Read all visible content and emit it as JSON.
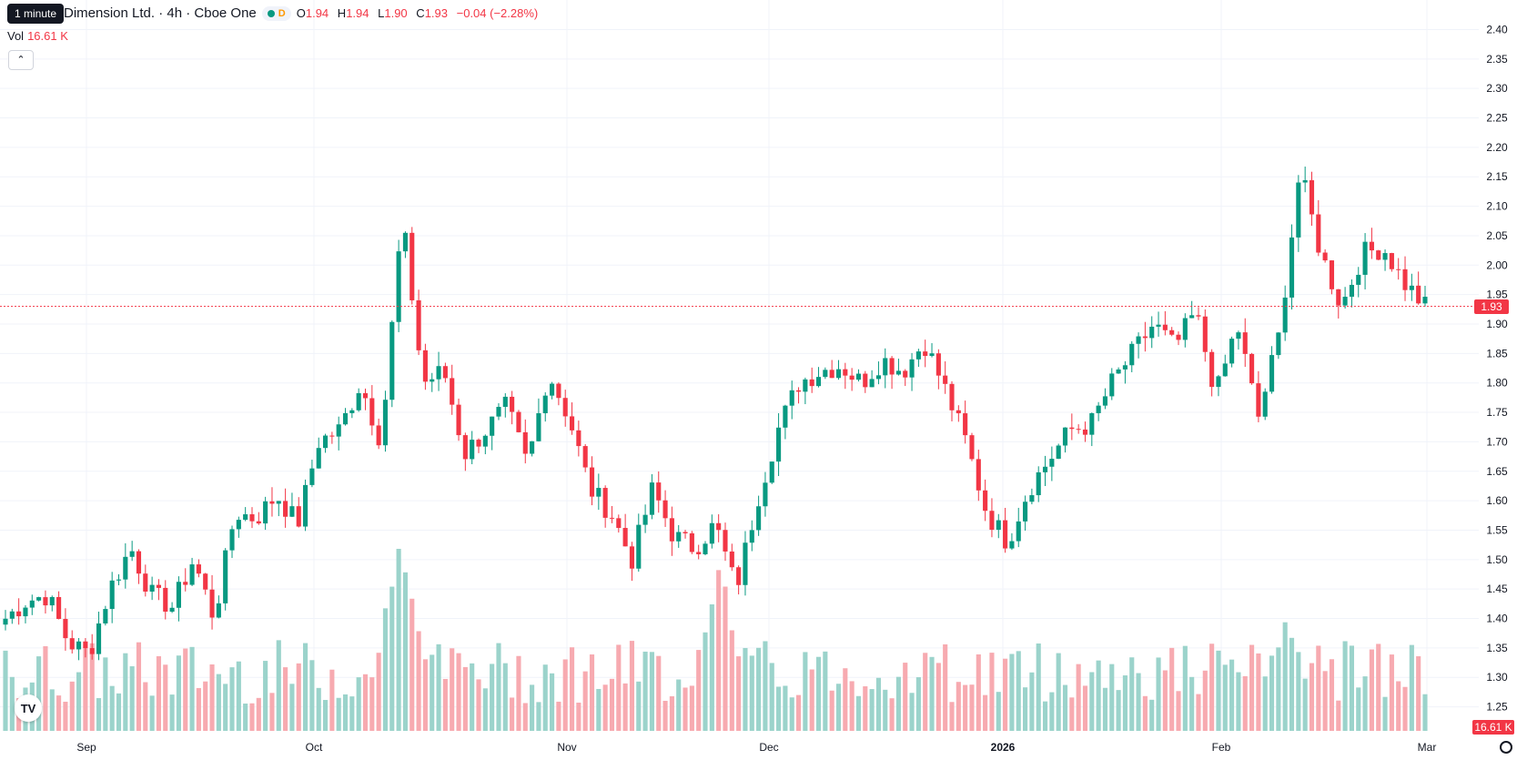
{
  "header": {
    "title": "Dimension Ltd. · 4h · Cboe One",
    "badge": "D",
    "ohlc": [
      {
        "k": "O",
        "v": "1.94"
      },
      {
        "k": "H",
        "v": "1.94"
      },
      {
        "k": "L",
        "v": "1.90"
      },
      {
        "k": "C",
        "v": "1.93"
      }
    ],
    "change": "−0.04 (−2.28%)",
    "vol_label": "Vol",
    "vol_value": "16.61 K",
    "tooltip": "1 minute",
    "collapse_icon": "chevron-up-icon"
  },
  "price_axis": {
    "ticks": [
      "2.40",
      "2.35",
      "2.30",
      "2.25",
      "2.20",
      "2.15",
      "2.10",
      "2.05",
      "2.00",
      "1.95",
      "1.90",
      "1.85",
      "1.80",
      "1.75",
      "1.70",
      "1.65",
      "1.60",
      "1.55",
      "1.50",
      "1.45",
      "1.40",
      "1.35",
      "1.30",
      "1.25"
    ],
    "last_price": "1.93",
    "last_volume": "16.61 K"
  },
  "time_axis": {
    "ticks": [
      "Sep",
      "Oct",
      "Nov",
      "Dec",
      "2026",
      "Feb",
      "Mar"
    ]
  },
  "colors": {
    "up": "#089981",
    "down": "#f23645",
    "up_vol": "#9bd3cb",
    "down_vol": "#f7aab0",
    "grid": "#f0f3fa",
    "last_line": "#f23645"
  },
  "chart_data": {
    "type": "candlestick",
    "symbol": "Dimension Ltd.",
    "interval": "4h",
    "exchange": "Cboe One",
    "y_range": [
      1.22,
      2.41
    ],
    "x_ticks": [
      "Sep",
      "Oct",
      "Nov",
      "Dec",
      "2026",
      "Feb",
      "Mar"
    ],
    "price_keyframes": [
      1.4,
      1.43,
      1.44,
      1.36,
      1.34,
      1.45,
      1.52,
      1.44,
      1.42,
      1.5,
      1.4,
      1.58,
      1.57,
      1.61,
      1.56,
      1.7,
      1.72,
      1.8,
      1.7,
      2.08,
      1.8,
      1.82,
      1.68,
      1.72,
      1.76,
      1.66,
      1.82,
      1.74,
      1.62,
      1.58,
      1.5,
      1.62,
      1.54,
      1.52,
      1.56,
      1.45,
      1.6,
      1.72,
      1.8,
      1.82,
      1.83,
      1.8,
      1.84,
      1.82,
      1.87,
      1.79,
      1.7,
      1.58,
      1.53,
      1.62,
      1.67,
      1.72,
      1.73,
      1.8,
      1.85,
      1.9,
      1.86,
      1.92,
      1.78,
      1.9,
      1.74,
      1.88,
      2.16,
      2.02,
      1.93,
      2.02,
      2.03,
      1.97,
      1.93
    ],
    "volume_peaks": [
      {
        "x_label": "Oct",
        "value": 1.0
      },
      {
        "x_label": "Nov",
        "value": 0.85
      },
      {
        "x_label": "Feb",
        "value": 0.55
      }
    ]
  }
}
